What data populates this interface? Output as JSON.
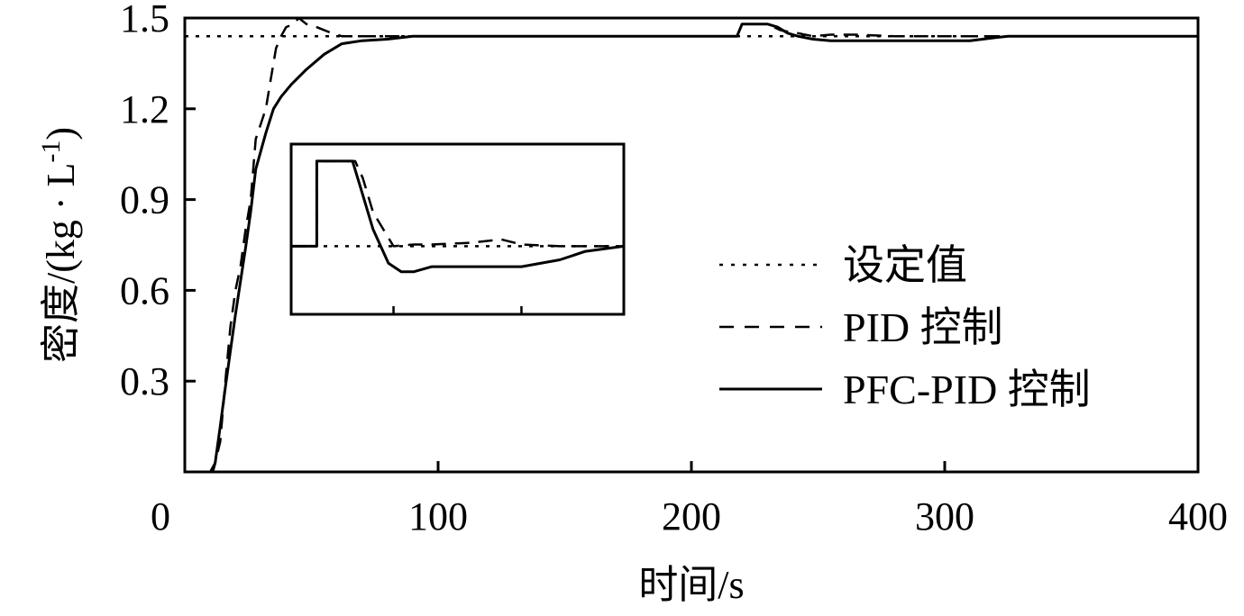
{
  "chart_data": {
    "type": "line",
    "xlabel": "时间/s",
    "ylabel": "密度/(kg · L",
    "ylabel_sup": "-1",
    "ylabel_close": ")",
    "xlim": [
      0,
      400
    ],
    "ylim": [
      0,
      1.5
    ],
    "xticks": [
      0,
      100,
      200,
      300,
      400
    ],
    "xtick_labels": [
      "0",
      "100",
      "200",
      "300",
      "400"
    ],
    "yticks": [
      0.3,
      0.6,
      0.9,
      1.2,
      1.5
    ],
    "ytick_labels": [
      "0.3",
      "0.6",
      "0.9",
      "1.2",
      "1.5"
    ],
    "grid": false,
    "legend_position": "right",
    "series": [
      {
        "name": "设定值",
        "style": "dotted",
        "x": [
          0,
          400
        ],
        "y": [
          1.44,
          1.44
        ]
      },
      {
        "name": "PID 控制",
        "style": "dashed",
        "x": [
          0,
          10,
          12,
          14,
          16,
          18,
          20,
          22,
          24,
          26,
          28,
          30,
          32,
          34,
          36,
          38,
          40,
          43,
          45,
          48,
          52,
          55,
          58,
          62,
          70,
          80,
          90,
          100,
          200,
          218,
          220,
          225,
          230,
          235,
          238,
          242,
          248,
          255,
          265,
          280,
          300,
          315,
          320,
          325,
          400
        ],
        "y": [
          0,
          0,
          0.03,
          0.1,
          0.3,
          0.48,
          0.6,
          0.68,
          0.8,
          0.9,
          1.1,
          1.15,
          1.2,
          1.3,
          1.4,
          1.44,
          1.47,
          1.48,
          1.5,
          1.48,
          1.47,
          1.46,
          1.45,
          1.44,
          1.44,
          1.44,
          1.44,
          1.44,
          1.44,
          1.44,
          1.48,
          1.48,
          1.48,
          1.46,
          1.455,
          1.45,
          1.44,
          1.445,
          1.445,
          1.44,
          1.44,
          1.44,
          1.44,
          1.44,
          1.44
        ]
      },
      {
        "name": "PFC-PID 控制",
        "style": "solid",
        "x": [
          0,
          11,
          12,
          14,
          16,
          18,
          20,
          22,
          24,
          26,
          28,
          30,
          32,
          35,
          38,
          42,
          48,
          55,
          62,
          70,
          80,
          90,
          100,
          200,
          218,
          220,
          225,
          230,
          234,
          238,
          242,
          248,
          255,
          270,
          290,
          310,
          320,
          325,
          400
        ],
        "y": [
          0,
          0,
          0.03,
          0.15,
          0.28,
          0.4,
          0.52,
          0.63,
          0.74,
          0.86,
          1.0,
          1.06,
          1.12,
          1.2,
          1.24,
          1.28,
          1.33,
          1.38,
          1.415,
          1.425,
          1.43,
          1.44,
          1.44,
          1.44,
          1.44,
          1.48,
          1.48,
          1.48,
          1.47,
          1.45,
          1.44,
          1.43,
          1.425,
          1.425,
          1.425,
          1.425,
          1.435,
          1.44,
          1.44
        ]
      }
    ],
    "inset": {
      "description": "zoomed view of the 218-325 s disturbance region",
      "xlim": [
        210,
        340
      ],
      "ylim": [
        1.4,
        1.5
      ],
      "xticks": [
        250,
        300
      ]
    }
  }
}
